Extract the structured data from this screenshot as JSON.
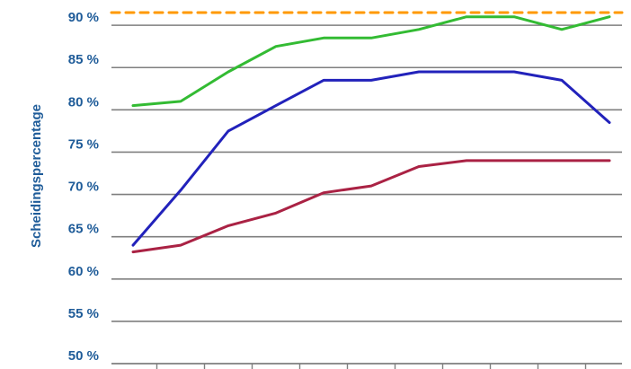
{
  "chart_data": {
    "type": "line",
    "ylabel": "Scheidingspercentage",
    "ylim": [
      50,
      91.5
    ],
    "y_ticks": [
      {
        "value": 50,
        "label": "50 %"
      },
      {
        "value": 55,
        "label": "55 %"
      },
      {
        "value": 60,
        "label": "60 %"
      },
      {
        "value": 65,
        "label": "65 %"
      },
      {
        "value": 70,
        "label": "70 %"
      },
      {
        "value": 75,
        "label": "75 %"
      },
      {
        "value": 80,
        "label": "80 %"
      },
      {
        "value": 85,
        "label": "85 %"
      },
      {
        "value": 90,
        "label": "90 %"
      }
    ],
    "x": [
      1,
      2,
      3,
      4,
      5,
      6,
      7,
      8,
      9,
      10,
      11
    ],
    "grid": true,
    "legend": "none",
    "series": [
      {
        "color": "#ff9900",
        "dashed": true,
        "values": [
          91.5,
          91.5,
          91.5,
          91.5,
          91.5,
          91.5,
          91.5,
          91.5,
          91.5,
          91.5,
          91.5
        ]
      },
      {
        "color": "#33bb33",
        "values": [
          80.5,
          81,
          84.5,
          87.5,
          88.5,
          88.5,
          89.5,
          91,
          91,
          89.5,
          91
        ]
      },
      {
        "color": "#2222bb",
        "values": [
          64,
          70.5,
          77.5,
          80.5,
          83.5,
          83.5,
          84.5,
          84.5,
          84.5,
          83.5,
          78.5
        ]
      },
      {
        "color": "#aa2244",
        "values": [
          63.2,
          64,
          66.3,
          67.8,
          70.2,
          71,
          73.3,
          74,
          74,
          74,
          74
        ]
      }
    ]
  }
}
